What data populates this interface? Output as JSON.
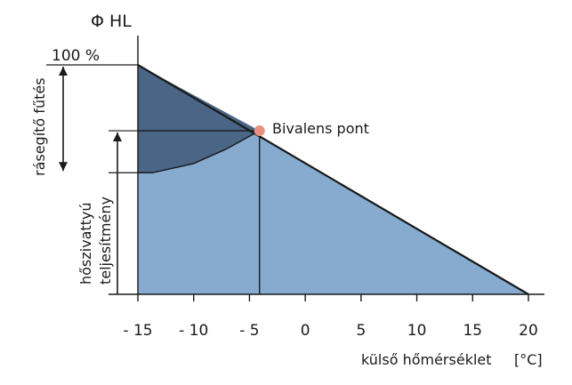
{
  "chart_data": {
    "type": "area",
    "y_axis_title": "Φ HL",
    "x_axis_title": "külső hőmérséklet",
    "x_unit": "[°C]",
    "y_top_label": "100 %",
    "x_ticks": [
      -15,
      -10,
      -5,
      0,
      5,
      10,
      15,
      20
    ],
    "x_tick_labels": [
      "- 15",
      "- 10",
      "- 5",
      "0",
      "5",
      "10",
      "15",
      "20"
    ],
    "xlim": [
      -15,
      20
    ],
    "ylim": [
      0,
      100
    ],
    "heat_demand_line": {
      "x": [
        -15,
        20
      ],
      "y": [
        100,
        0
      ]
    },
    "heat_pump_curve": {
      "x": [
        -15,
        -13.7,
        -10,
        -7,
        -4.1
      ],
      "y": [
        53,
        53,
        57,
        63.5,
        71.3
      ]
    },
    "bivalent_point": {
      "x": -4.1,
      "y": 71.3,
      "label": "Bivalens pont"
    },
    "heat_pump_level": 71.3,
    "regions": [
      {
        "label": "rásegítő fűtés",
        "y_from": 53,
        "y_to": 100
      },
      {
        "label_lines": [
          "hőszivattyú",
          "teljesítmény"
        ],
        "y_from": 0,
        "y_to": 71.3
      }
    ],
    "colors": {
      "upper_region": "#4a6585",
      "lower_region": "#86abcf",
      "point": "#e8907f",
      "line": "#1a1a1a"
    }
  }
}
